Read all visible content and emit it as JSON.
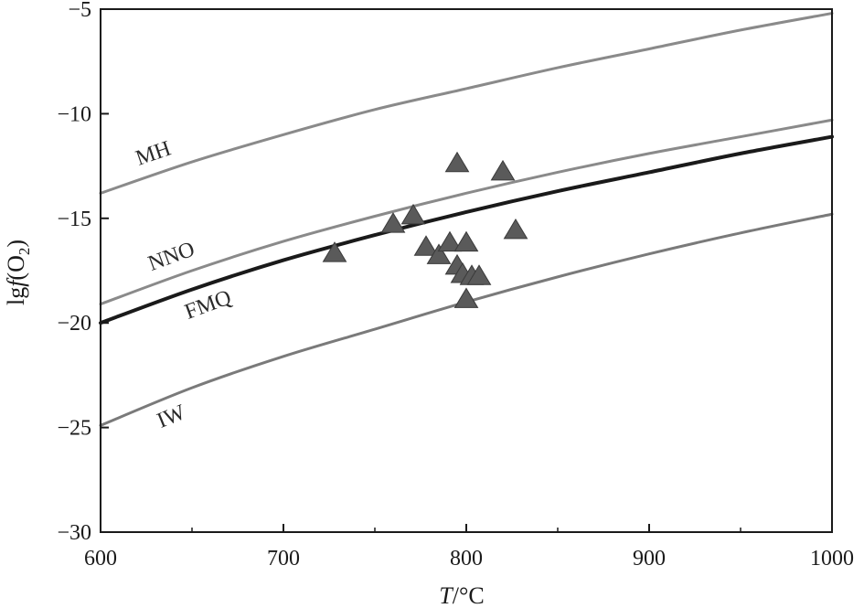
{
  "chart_data": {
    "type": "line",
    "title": "",
    "xlabel": "T/°C",
    "ylabel": "lgf(O2)",
    "xlabel_parts": {
      "italic": "T",
      "rest": "/°C"
    },
    "ylabel_parts": {
      "prefix": "lg",
      "italic": "f",
      "open": "(O",
      "sub": "2",
      "close": ")"
    },
    "xlim": [
      600,
      1000
    ],
    "ylim": [
      -30,
      -5
    ],
    "xticks": [
      600,
      700,
      800,
      900,
      1000
    ],
    "yticks": [
      -30,
      -25,
      -20,
      -15,
      -10,
      -5
    ],
    "xtick_labels": [
      "600",
      "700",
      "800",
      "900",
      "1000"
    ],
    "ytick_labels": [
      "−30",
      "−25",
      "−20",
      "−15",
      "−10",
      "−5"
    ],
    "grid": false,
    "series": [
      {
        "name": "MH",
        "color": "#8a8a8a",
        "x": [
          600,
          650,
          700,
          750,
          800,
          850,
          900,
          950,
          1000
        ],
        "y": [
          -13.8,
          -12.3,
          -11.0,
          -9.8,
          -8.8,
          -7.8,
          -6.9,
          -6.0,
          -5.2
        ]
      },
      {
        "name": "NNO",
        "color": "#8a8a8a",
        "x": [
          600,
          650,
          700,
          750,
          800,
          850,
          900,
          950,
          1000
        ],
        "y": [
          -19.1,
          -17.5,
          -16.1,
          -14.9,
          -13.8,
          -12.8,
          -11.9,
          -11.1,
          -10.3
        ]
      },
      {
        "name": "FMQ",
        "color": "#1a1a1a",
        "x": [
          600,
          650,
          700,
          750,
          800,
          850,
          900,
          950,
          1000
        ],
        "y": [
          -20.0,
          -18.4,
          -17.0,
          -15.8,
          -14.7,
          -13.7,
          -12.8,
          -11.9,
          -11.1
        ]
      },
      {
        "name": "IW",
        "color": "#7a7a7a",
        "x": [
          600,
          650,
          700,
          750,
          800,
          850,
          900,
          950,
          1000
        ],
        "y": [
          -24.9,
          -23.1,
          -21.6,
          -20.3,
          -19.0,
          -17.8,
          -16.7,
          -15.7,
          -14.8
        ]
      }
    ],
    "scatter": {
      "marker": "triangle",
      "color": "#5a5a5a",
      "points": [
        {
          "x": 728,
          "y": -16.7
        },
        {
          "x": 760,
          "y": -15.3
        },
        {
          "x": 771,
          "y": -14.9
        },
        {
          "x": 778,
          "y": -16.4
        },
        {
          "x": 785,
          "y": -16.8
        },
        {
          "x": 791,
          "y": -16.2
        },
        {
          "x": 795,
          "y": -12.4
        },
        {
          "x": 795,
          "y": -17.3
        },
        {
          "x": 798,
          "y": -17.7
        },
        {
          "x": 800,
          "y": -16.2
        },
        {
          "x": 800,
          "y": -18.9
        },
        {
          "x": 803,
          "y": -17.8
        },
        {
          "x": 807,
          "y": -17.8
        },
        {
          "x": 820,
          "y": -12.8
        },
        {
          "x": 827,
          "y": -15.6
        }
      ]
    }
  }
}
